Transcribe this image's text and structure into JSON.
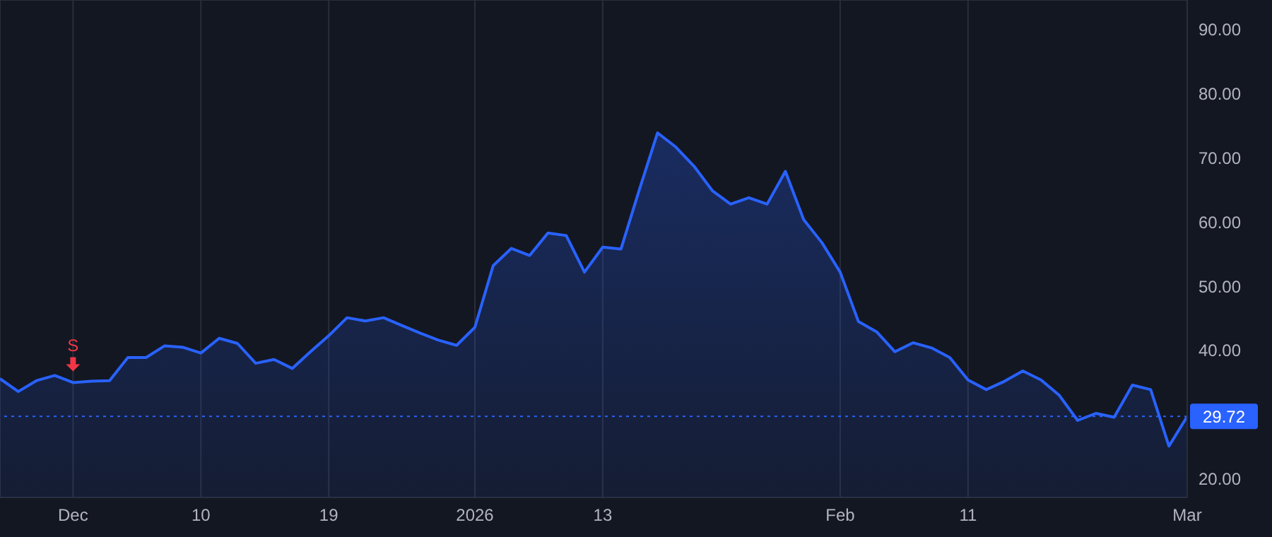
{
  "chart_data": {
    "type": "area",
    "categories": [
      null,
      null,
      null,
      null,
      "Dec",
      null,
      null,
      null,
      null,
      null,
      null,
      "10",
      null,
      null,
      null,
      null,
      null,
      null,
      "19",
      null,
      null,
      null,
      null,
      null,
      null,
      null,
      "2026",
      null,
      null,
      null,
      null,
      null,
      null,
      "13",
      null,
      null,
      null,
      null,
      null,
      null,
      null,
      null,
      null,
      null,
      null,
      null,
      "Feb",
      null,
      null,
      null,
      null,
      null,
      null,
      "11",
      null,
      null,
      null,
      null,
      null,
      null,
      null,
      null,
      null,
      null,
      null,
      "Mar"
    ],
    "series": [
      {
        "color": "#2962ff",
        "values": [
          35.6,
          33.6,
          35.3,
          36.1,
          35.0,
          35.2,
          35.3,
          38.9,
          38.9,
          40.7,
          40.5,
          39.6,
          41.9,
          41.1,
          38.0,
          38.6,
          37.2,
          39.8,
          42.3,
          45.1,
          44.6,
          45.1,
          43.9,
          42.7,
          41.6,
          40.8,
          43.6,
          53.2,
          55.9,
          54.8,
          58.3,
          57.9,
          52.2,
          56.1,
          55.8,
          65.0,
          73.9,
          71.7,
          68.7,
          64.9,
          62.8,
          63.8,
          62.8,
          67.9,
          60.4,
          56.8,
          52.2,
          44.5,
          42.9,
          39.8,
          41.2,
          40.4,
          38.9,
          35.4,
          33.9,
          35.2,
          36.8,
          35.4,
          33.0,
          29.1,
          30.2,
          29.6,
          34.6,
          33.9,
          25.1,
          29.7
        ]
      }
    ],
    "ylim": [
      17.1,
      94.6
    ],
    "yticks": [
      {
        "value": 20,
        "label": "20.00"
      },
      {
        "value": 30,
        "label": null
      },
      {
        "value": 40,
        "label": "40.00"
      },
      {
        "value": 50,
        "label": "50.00"
      },
      {
        "value": 60,
        "label": "60.00"
      },
      {
        "value": 70,
        "label": "70.00"
      },
      {
        "value": 80,
        "label": "80.00"
      },
      {
        "value": 90,
        "label": "90.00"
      }
    ],
    "ref_lines": [
      {
        "axis": "y",
        "value": 29.72,
        "label": "29.72",
        "color": "#2962ff",
        "line_style": "dotted"
      }
    ],
    "annotations": [
      {
        "text": "S",
        "x": "Dec",
        "y": 35.0
      }
    ],
    "grid": true,
    "marker": "none",
    "line_style": "solid"
  }
}
